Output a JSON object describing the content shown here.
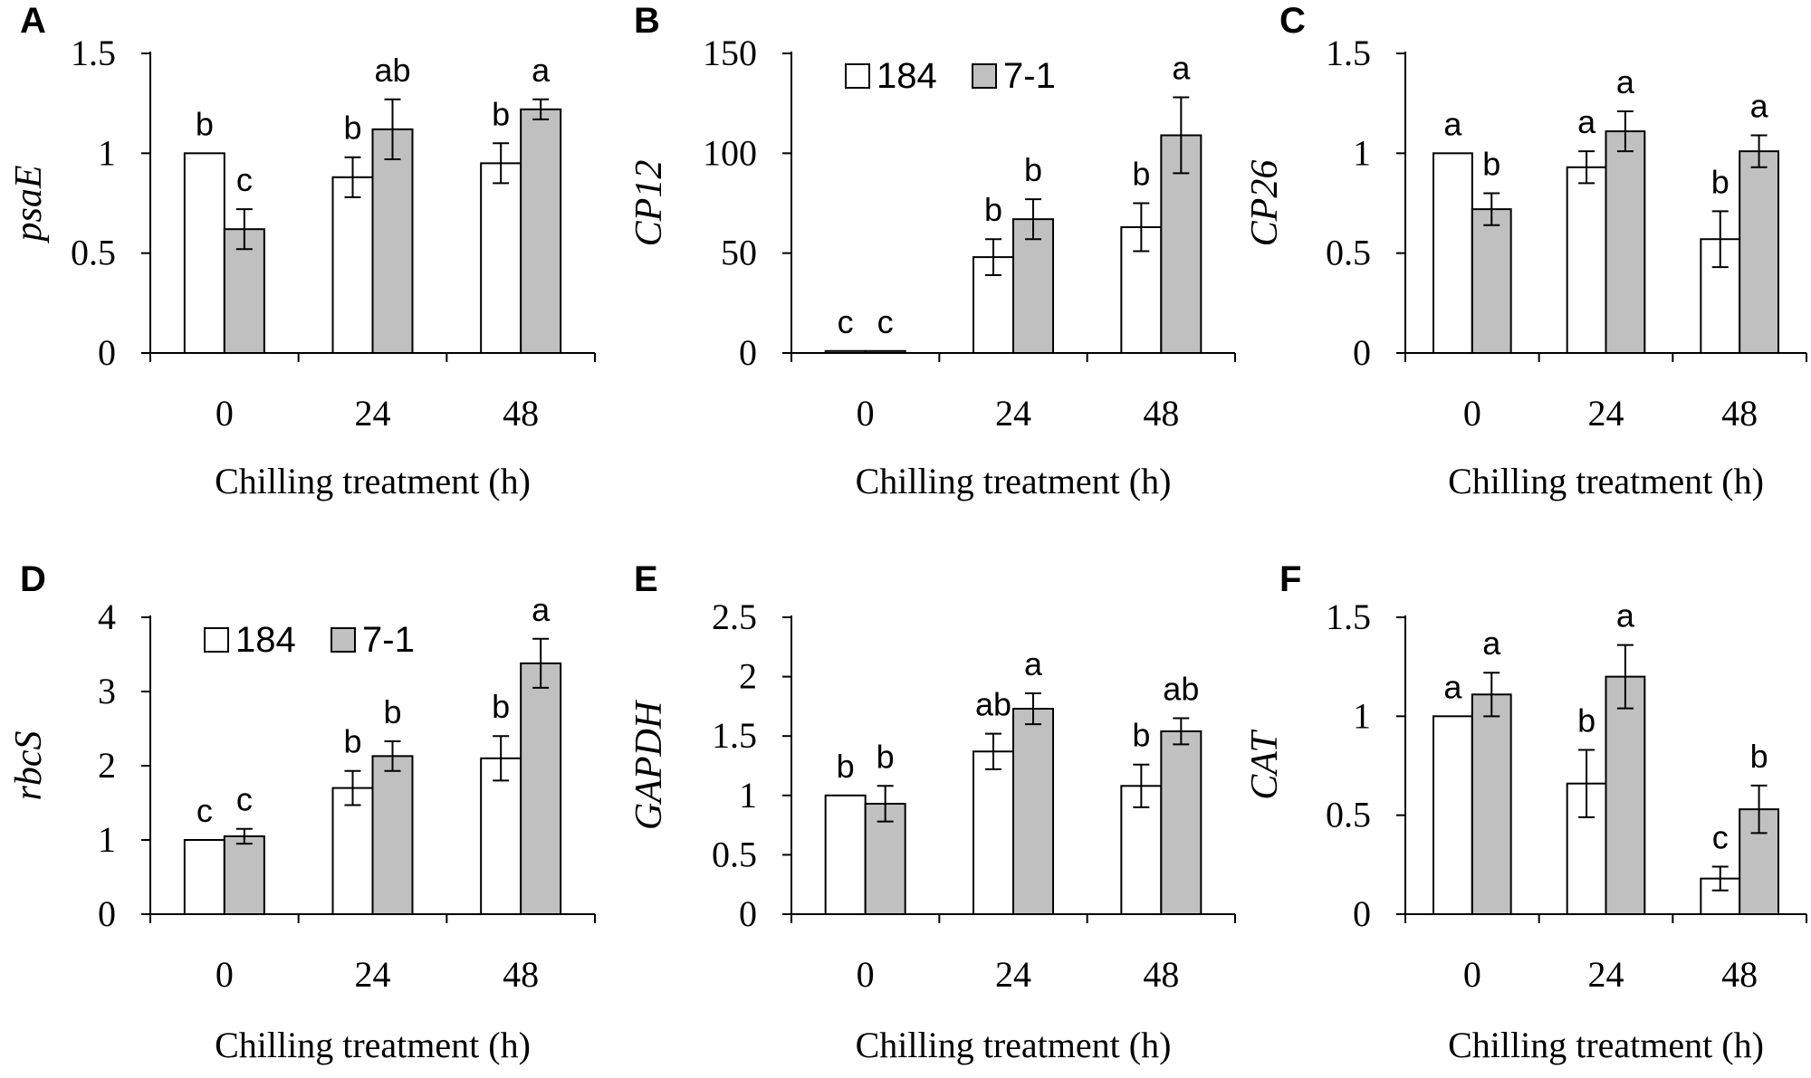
{
  "colors": {
    "series_184": "#ffffff",
    "series_7_1": "#c0c0c0",
    "stroke": "#000000"
  },
  "chart_data": [
    {
      "panel": "A",
      "type": "bar",
      "title": "",
      "ylabel": "psaE",
      "xlabel": "Chilling treatment (h)",
      "categories": [
        "0",
        "24",
        "48"
      ],
      "ylim": [
        0,
        1.5
      ],
      "yticks": [
        "0",
        "0.5",
        "1",
        "1.5"
      ],
      "series": [
        {
          "name": "184",
          "values": [
            1.0,
            0.88,
            0.95
          ],
          "errors": [
            0,
            0.1,
            0.1
          ],
          "letters": [
            "b",
            "b",
            "b"
          ]
        },
        {
          "name": "7-1",
          "values": [
            0.62,
            1.12,
            1.22
          ],
          "errors": [
            0.1,
            0.15,
            0.05
          ],
          "letters": [
            "c",
            "ab",
            "a"
          ]
        }
      ],
      "legend": false
    },
    {
      "panel": "B",
      "type": "bar",
      "title": "",
      "ylabel": "CP12",
      "xlabel": "Chilling treatment (h)",
      "categories": [
        "0",
        "24",
        "48"
      ],
      "ylim": [
        0,
        150
      ],
      "yticks": [
        "0",
        "50",
        "100",
        "150"
      ],
      "series": [
        {
          "name": "184",
          "values": [
            1,
            48,
            63
          ],
          "errors": [
            0,
            9,
            12
          ],
          "letters": [
            "c",
            "b",
            "b"
          ]
        },
        {
          "name": "7-1",
          "values": [
            1,
            67,
            109
          ],
          "errors": [
            0,
            10,
            19
          ],
          "letters": [
            "c",
            "b",
            "a"
          ]
        }
      ],
      "legend": true
    },
    {
      "panel": "C",
      "type": "bar",
      "title": "",
      "ylabel": "CP26",
      "xlabel": "Chilling treatment (h)",
      "categories": [
        "0",
        "24",
        "48"
      ],
      "ylim": [
        0,
        1.5
      ],
      "yticks": [
        "0",
        "0.5",
        "1",
        "1.5"
      ],
      "series": [
        {
          "name": "184",
          "values": [
            1.0,
            0.93,
            0.57
          ],
          "errors": [
            0,
            0.08,
            0.14
          ],
          "letters": [
            "a",
            "a",
            "b"
          ]
        },
        {
          "name": "7-1",
          "values": [
            0.72,
            1.11,
            1.01
          ],
          "errors": [
            0.08,
            0.1,
            0.08
          ],
          "letters": [
            "b",
            "a",
            "a"
          ]
        }
      ],
      "legend": false
    },
    {
      "panel": "D",
      "type": "bar",
      "title": "",
      "ylabel": "rbcS",
      "xlabel": "Chilling treatment (h)",
      "categories": [
        "0",
        "24",
        "48"
      ],
      "ylim": [
        0,
        4
      ],
      "yticks": [
        "0",
        "1",
        "2",
        "3",
        "4"
      ],
      "series": [
        {
          "name": "184",
          "values": [
            1.0,
            1.7,
            2.1
          ],
          "errors": [
            0,
            0.23,
            0.3
          ],
          "letters": [
            "c",
            "b",
            "b"
          ]
        },
        {
          "name": "7-1",
          "values": [
            1.05,
            2.13,
            3.38
          ],
          "errors": [
            0.1,
            0.2,
            0.33
          ],
          "letters": [
            "c",
            "b",
            "a"
          ]
        }
      ],
      "legend": true
    },
    {
      "panel": "E",
      "type": "bar",
      "title": "",
      "ylabel": "GAPDH",
      "xlabel": "Chilling treatment (h)",
      "categories": [
        "0",
        "24",
        "48"
      ],
      "ylim": [
        0,
        2.5
      ],
      "yticks": [
        "0",
        "0.5",
        "1",
        "1.5",
        "2",
        "2.5"
      ],
      "series": [
        {
          "name": "184",
          "values": [
            1.0,
            1.37,
            1.08
          ],
          "errors": [
            0,
            0.15,
            0.18
          ],
          "letters": [
            "b",
            "ab",
            "b"
          ]
        },
        {
          "name": "7-1",
          "values": [
            0.93,
            1.73,
            1.54
          ],
          "errors": [
            0.15,
            0.13,
            0.11
          ],
          "letters": [
            "b",
            "a",
            "ab"
          ]
        }
      ],
      "legend": false
    },
    {
      "panel": "F",
      "type": "bar",
      "title": "",
      "ylabel": "CAT",
      "xlabel": "Chilling treatment (h)",
      "categories": [
        "0",
        "24",
        "48"
      ],
      "ylim": [
        0,
        1.5
      ],
      "yticks": [
        "0",
        "0.5",
        "1",
        "1.5"
      ],
      "series": [
        {
          "name": "184",
          "values": [
            1.0,
            0.66,
            0.18
          ],
          "errors": [
            0,
            0.17,
            0.06
          ],
          "letters": [
            "a",
            "b",
            "c"
          ]
        },
        {
          "name": "7-1",
          "values": [
            1.11,
            1.2,
            0.53
          ],
          "errors": [
            0.11,
            0.16,
            0.12
          ],
          "letters": [
            "a",
            "a",
            "b"
          ]
        }
      ],
      "legend": false
    }
  ]
}
